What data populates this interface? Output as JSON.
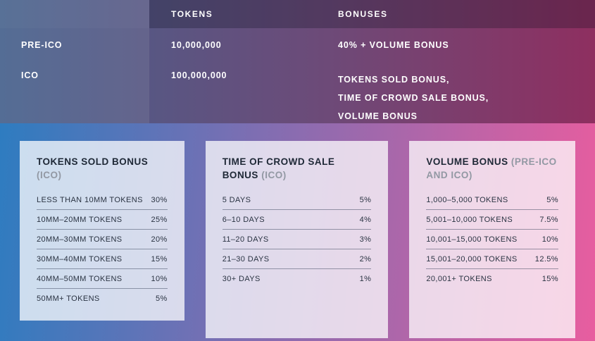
{
  "colors": {
    "top_gradient_left": "#46618c",
    "top_gradient_right": "#8e2f60",
    "bottom_gradient_left": "#2e7cc0",
    "bottom_gradient_right": "#e85d9f",
    "card_background": "#ffffff",
    "text_dark": "#273243",
    "note_gray": "#9298a3"
  },
  "chart_data": [
    {
      "type": "table",
      "name": "ico-overview",
      "columns": [
        "",
        "TOKENS",
        "BONUSES"
      ],
      "rows": [
        {
          "label": "PRE-ICO",
          "tokens": "10,000,000",
          "bonus_lines": [
            "40% + VOLUME BONUS"
          ]
        },
        {
          "label": "ICO",
          "tokens": "100,000,000",
          "bonus_lines": [
            "TOKENS SOLD BONUS,",
            "TIME OF CROWD SALE BONUS,",
            "VOLUME BONUS"
          ]
        }
      ]
    },
    {
      "type": "table",
      "name": "tokens-sold-bonus",
      "title_main": "TOKENS SOLD BONUS",
      "title_note": "(ICO)",
      "rows": [
        {
          "label": "LESS THAN 10MM TOKENS",
          "value": "30%"
        },
        {
          "label": "10MM–20MM TOKENS",
          "value": "25%"
        },
        {
          "label": "20MM–30MM TOKENS",
          "value": "20%"
        },
        {
          "label": "30MM–40MM TOKENS",
          "value": "15%"
        },
        {
          "label": "40MM–50MM TOKENS",
          "value": "10%"
        },
        {
          "label": "50MM+ TOKENS",
          "value": "5%"
        }
      ]
    },
    {
      "type": "table",
      "name": "time-of-crowd-sale-bonus",
      "title_main": "TIME OF CROWD SALE BONUS",
      "title_note": "(ICO)",
      "rows": [
        {
          "label": "5 DAYS",
          "value": "5%"
        },
        {
          "label": "6–10 DAYS",
          "value": "4%"
        },
        {
          "label": "11–20 DAYS",
          "value": "3%"
        },
        {
          "label": "21–30 DAYS",
          "value": "2%"
        },
        {
          "label": "30+ DAYS",
          "value": "1%"
        }
      ]
    },
    {
      "type": "table",
      "name": "volume-bonus",
      "title_main": "VOLUME BONUS",
      "title_note": "(PRE-ICO AND ICO)",
      "rows": [
        {
          "label": "1,000–5,000 TOKENS",
          "value": "5%"
        },
        {
          "label": "5,001–10,000 TOKENS",
          "value": "7.5%"
        },
        {
          "label": "10,001–15,000 TOKENS",
          "value": "10%"
        },
        {
          "label": "15,001–20,000 TOKENS",
          "value": "12.5%"
        },
        {
          "label": "20,001+ TOKENS",
          "value": "15%"
        }
      ]
    }
  ]
}
